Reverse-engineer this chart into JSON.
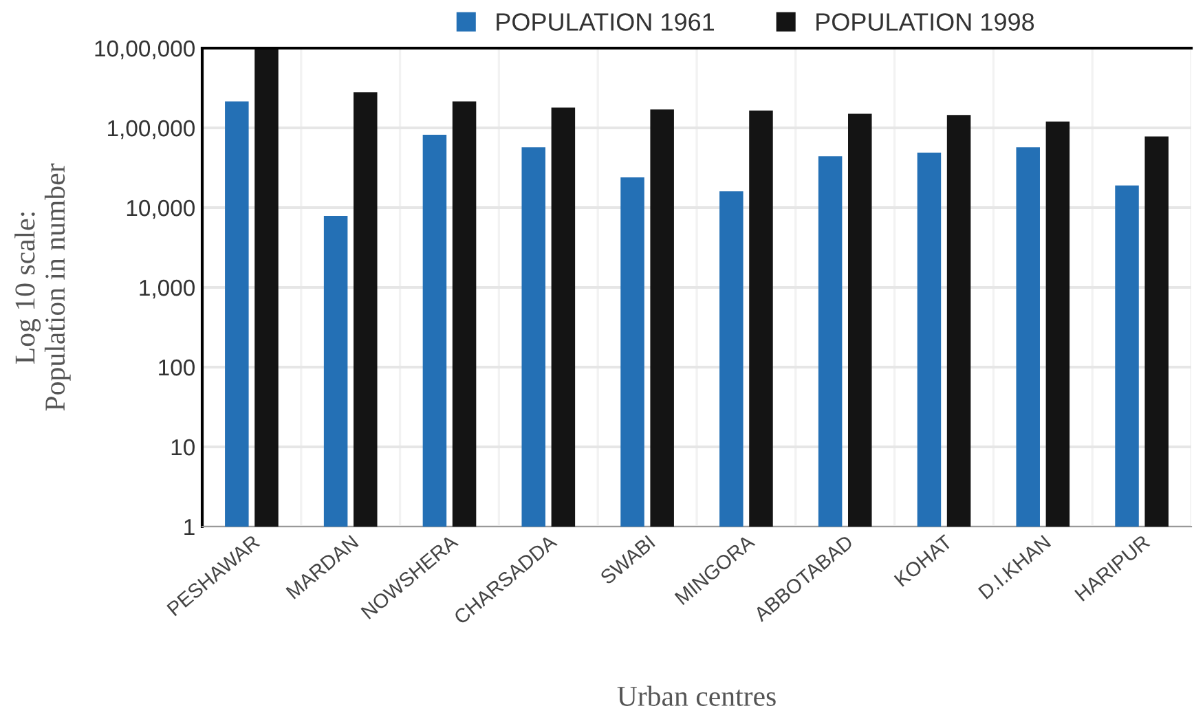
{
  "chart_data": {
    "type": "bar",
    "xlabel": "Urban centres",
    "ylabel": "Log 10 scale:\nPopulation in number",
    "categories": [
      "PESHAWAR",
      "MARDAN",
      "NOWSHERA",
      "CHARSADDA",
      "SWABI",
      "MINGORA",
      "ABBOTABAD",
      "KOHAT",
      "D.I.KHAN",
      "HARIPUR"
    ],
    "series": [
      {
        "name": "POPULATION 1961",
        "color": "#2470b5",
        "values": [
          215000,
          7900,
          82000,
          57000,
          24000,
          16000,
          44000,
          49000,
          57000,
          19000
        ]
      },
      {
        "name": "POPULATION 1998",
        "color": "#141414",
        "values": [
          960000,
          280000,
          215000,
          180000,
          170000,
          165000,
          150000,
          145000,
          120000,
          78000
        ]
      }
    ],
    "log": true,
    "ylim": [
      1,
      1000000
    ],
    "yticks": [
      {
        "value": 1,
        "label": "1"
      },
      {
        "value": 10,
        "label": "10"
      },
      {
        "value": 100,
        "label": "100"
      },
      {
        "value": 1000,
        "label": "1,000"
      },
      {
        "value": 10000,
        "label": "10,000"
      },
      {
        "value": 100000,
        "label": "1,00,000"
      },
      {
        "value": 1000000,
        "label": "10,00,000"
      }
    ],
    "grid": true,
    "legend": "top"
  }
}
